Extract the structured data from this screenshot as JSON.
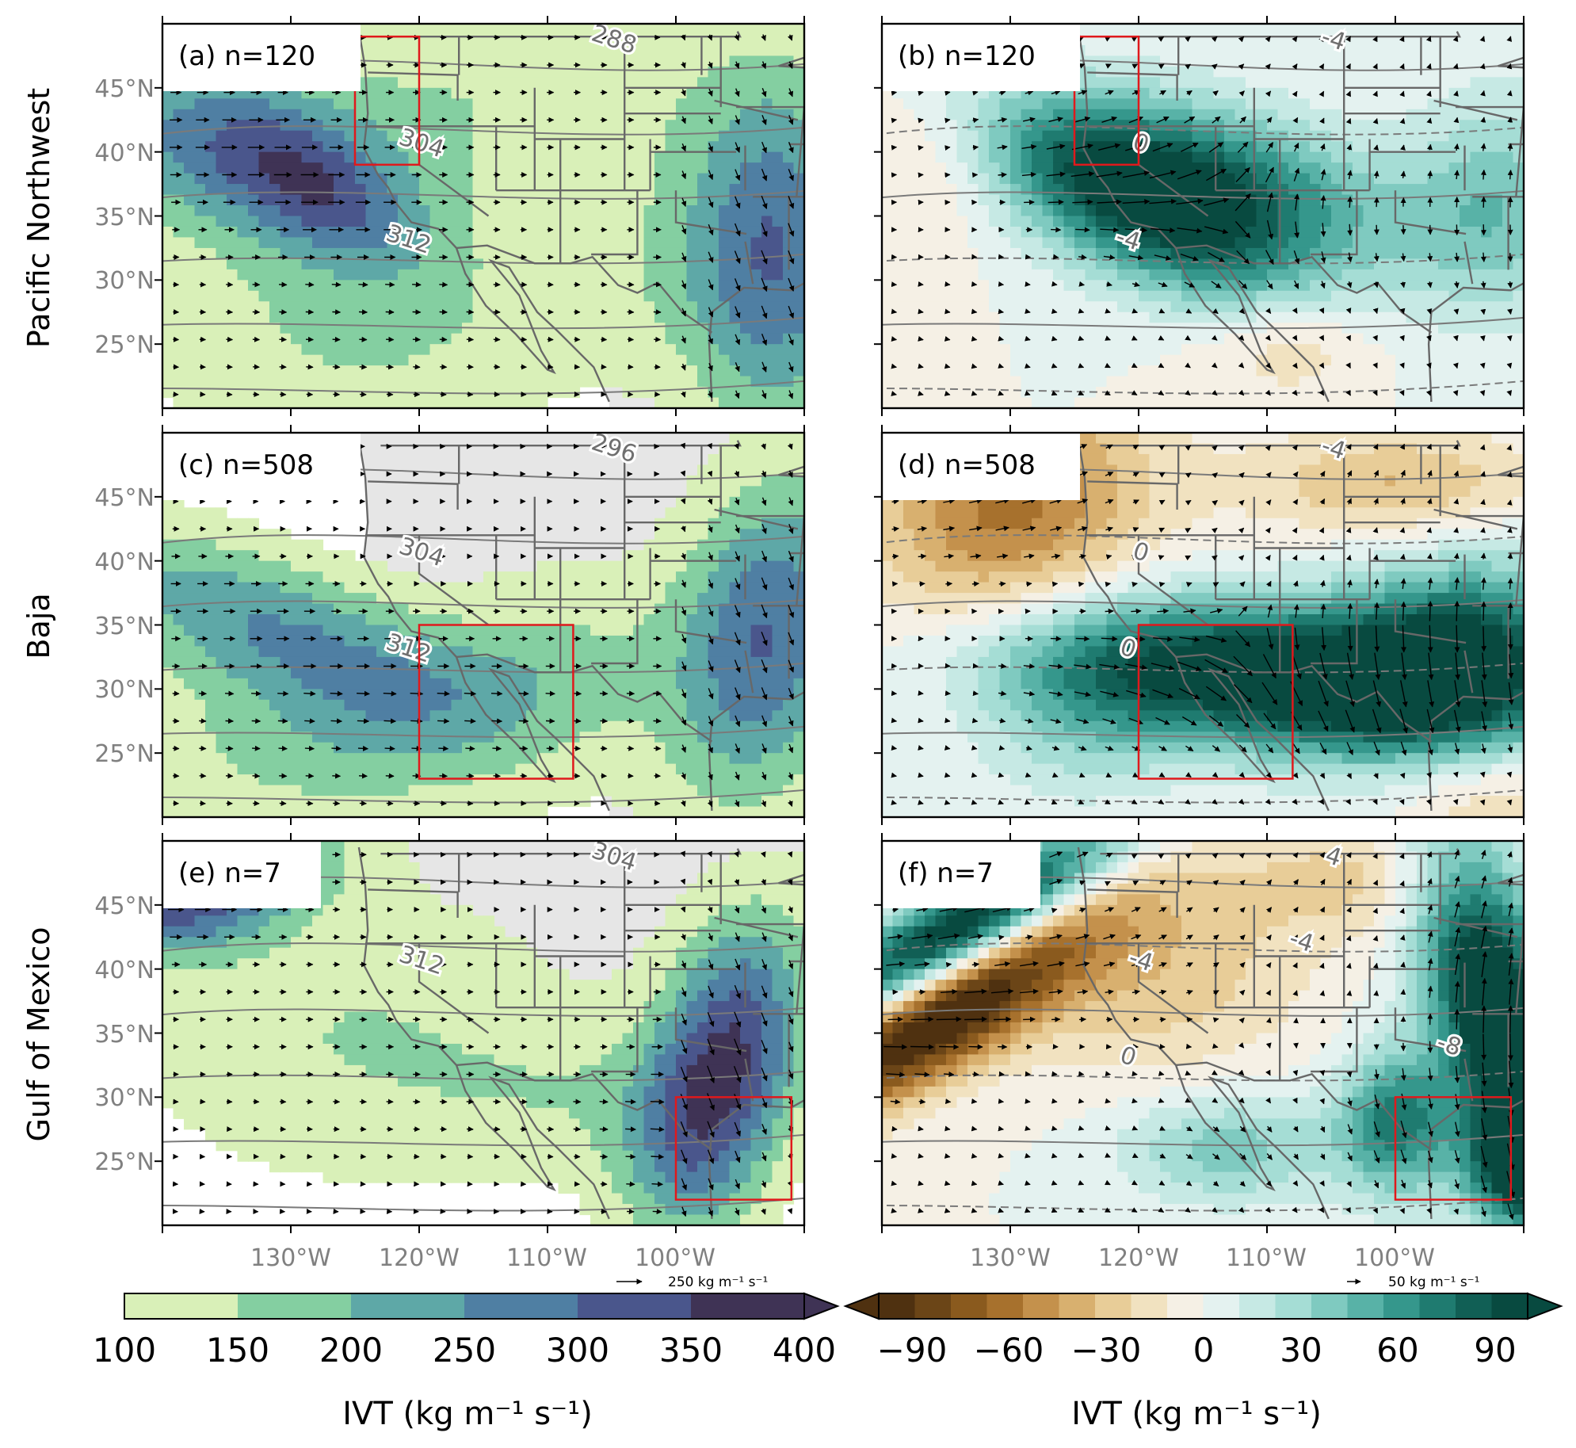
{
  "figure": {
    "row_labels": [
      "Pacific Northwest",
      "Baja",
      "Gulf of Mexico"
    ],
    "lat_ticks": [
      "45°N",
      "40°N",
      "35°N",
      "30°N",
      "25°N"
    ],
    "lon_ticks": [
      "130°W",
      "120°W",
      "110°W",
      "100°W"
    ],
    "panels": [
      {
        "id": "a",
        "label": "(a) n=120",
        "field": "composite",
        "contours": [
          "288",
          "304",
          "312"
        ]
      },
      {
        "id": "b",
        "label": "(b) n=120",
        "field": "anomaly",
        "contours": [
          "-4",
          "0",
          "-4"
        ]
      },
      {
        "id": "c",
        "label": "(c) n=508",
        "field": "composite",
        "contours": [
          "296",
          "304",
          "312"
        ]
      },
      {
        "id": "d",
        "label": "(d) n=508",
        "field": "anomaly",
        "contours": [
          "-4",
          "0",
          "0"
        ]
      },
      {
        "id": "e",
        "label": "(e) n=7",
        "field": "composite",
        "contours": [
          "304",
          "312"
        ]
      },
      {
        "id": "f",
        "label": "(f) n=7",
        "field": "anomaly",
        "contours": [
          "4",
          "-4",
          "0",
          "-4",
          "-8"
        ]
      }
    ],
    "colorbar_left": {
      "ticks": [
        "100",
        "150",
        "200",
        "250",
        "300",
        "350",
        "400"
      ],
      "label": "IVT (kg m⁻¹ s⁻¹)",
      "colors": [
        "#d9f0b8",
        "#84cfa1",
        "#5ea8a7",
        "#4f7fa3",
        "#4a568c",
        "#3f3355"
      ]
    },
    "colorbar_right": {
      "ticks": [
        "−90",
        "−60",
        "−30",
        "0",
        "30",
        "60",
        "90"
      ],
      "label": "IVT (kg m⁻¹ s⁻¹)",
      "colors": [
        "#4f3110",
        "#6b4517",
        "#8a5a1e",
        "#a7712d",
        "#c4914c",
        "#d8b06f",
        "#e8cd98",
        "#f1e2c0",
        "#f5f0e5",
        "#e4f2f0",
        "#c6e9e4",
        "#a5ddd5",
        "#7fcac0",
        "#58b2a7",
        "#35978c",
        "#1f7b70",
        "#115f55",
        "#084a40"
      ]
    },
    "ref_arrow_left": "250 kg m⁻¹ s⁻¹",
    "ref_arrow_right": "50 kg m⁻¹ s⁻¹",
    "box_color": "#e0191c"
  }
}
